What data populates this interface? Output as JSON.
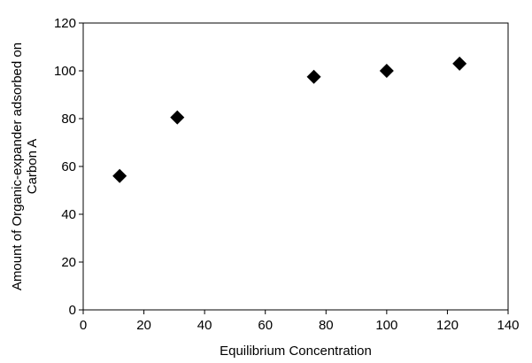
{
  "chart_data": {
    "type": "scatter",
    "title": "",
    "xlabel": "Equilibrium Concentration",
    "ylabel_lines": [
      "Amount of Organic-expander adsorbed on",
      "Carbon A"
    ],
    "xlim": [
      0,
      140
    ],
    "ylim": [
      0,
      120
    ],
    "xticks": [
      "0",
      "20",
      "40",
      "60",
      "80",
      "100",
      "120",
      "140"
    ],
    "yticks": [
      "0",
      "20",
      "40",
      "60",
      "80",
      "100",
      "120"
    ],
    "grid": false,
    "legend": "none",
    "marker": "diamond",
    "marker_color": "#000000",
    "series": [
      {
        "x": [
          12,
          31,
          76,
          100,
          124
        ],
        "y": [
          56,
          80.5,
          97.5,
          100,
          103
        ]
      }
    ]
  }
}
